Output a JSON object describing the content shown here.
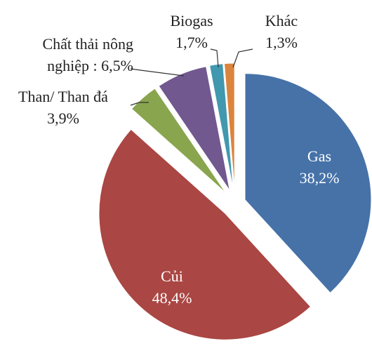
{
  "chart_data": {
    "type": "pie",
    "categories": [
      "Gas",
      "Củi",
      "Than/ Than đá",
      "Chất thải nông nghiệp",
      "Biogas",
      "Khác"
    ],
    "values": [
      38.2,
      48.4,
      3.9,
      6.5,
      1.7,
      1.3
    ],
    "value_labels": [
      "38,2%",
      "48,4%",
      "3,9%",
      ": 6,5%",
      "1,7%",
      "1,3%"
    ],
    "colors": [
      "#4672a8",
      "#aa4643",
      "#89a54e",
      "#71588f",
      "#4198af",
      "#db843d"
    ]
  }
}
